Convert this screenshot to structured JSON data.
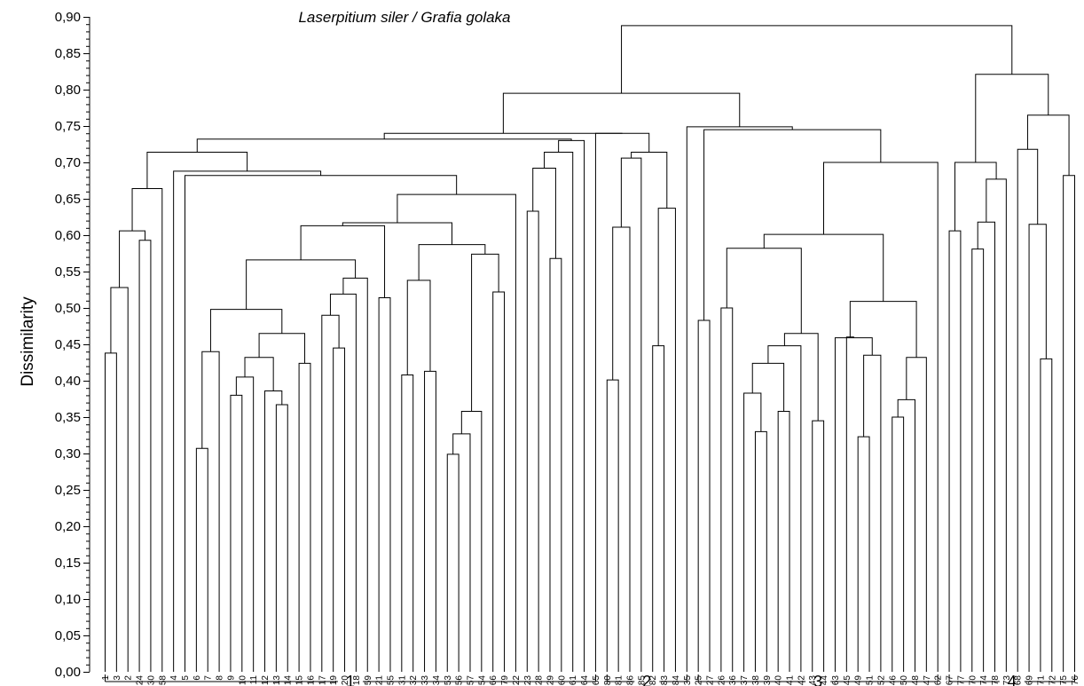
{
  "chart_data": {
    "type": "dendrogram",
    "title": "Laserpitium siler / Grafia golaka",
    "ylabel": "Dissimilarity",
    "xlabel": "",
    "ylim": [
      0,
      0.9
    ],
    "ytick_step": 0.05,
    "ytick_labels": [
      "0,00",
      "0,05",
      "0,10",
      "0,15",
      "0,20",
      "0,25",
      "0,30",
      "0,35",
      "0,40",
      "0,45",
      "0,50",
      "0,55",
      "0,60",
      "0,65",
      "0,70",
      "0,75",
      "0,80",
      "0,85",
      "0,90"
    ],
    "leaves": [
      "1",
      "3",
      "2",
      "24",
      "30",
      "58",
      "4",
      "5",
      "6",
      "7",
      "8",
      "9",
      "10",
      "11",
      "12",
      "13",
      "14",
      "15",
      "16",
      "17",
      "19",
      "20",
      "18",
      "59",
      "21",
      "55",
      "31",
      "32",
      "33",
      "34",
      "53",
      "56",
      "57",
      "54",
      "66",
      "79",
      "22",
      "23",
      "28",
      "29",
      "60",
      "61",
      "64",
      "65",
      "80",
      "81",
      "86",
      "85",
      "82",
      "83",
      "84",
      "35",
      "25",
      "27",
      "26",
      "36",
      "37",
      "38",
      "39",
      "40",
      "41",
      "42",
      "43",
      "44",
      "63",
      "45",
      "49",
      "51",
      "52",
      "46",
      "50",
      "48",
      "47",
      "62",
      "67",
      "77",
      "70",
      "74",
      "78",
      "73",
      "68",
      "69",
      "71",
      "72",
      "75",
      "76"
    ],
    "merges": [
      {
        "id": "A1",
        "children": [
          "1",
          "3"
        ],
        "height": 0.438
      },
      {
        "id": "A2",
        "children": [
          "A1",
          "2"
        ],
        "height": 0.528
      },
      {
        "id": "A3",
        "children": [
          "24",
          "30"
        ],
        "height": 0.593
      },
      {
        "id": "A4",
        "children": [
          "A2",
          "A3"
        ],
        "height": 0.606
      },
      {
        "id": "A5",
        "children": [
          "A4",
          "58"
        ],
        "height": 0.664
      },
      {
        "id": "B7",
        "children": [
          "6",
          "7"
        ],
        "height": 0.307
      },
      {
        "id": "B8",
        "children": [
          "B7",
          "8"
        ],
        "height": 0.44
      },
      {
        "id": "B9",
        "children": [
          "9",
          "10"
        ],
        "height": 0.38
      },
      {
        "id": "B10",
        "children": [
          "B9",
          "11"
        ],
        "height": 0.405
      },
      {
        "id": "B11",
        "children": [
          "13",
          "14"
        ],
        "height": 0.367
      },
      {
        "id": "B12",
        "children": [
          "12",
          "B11"
        ],
        "height": 0.386
      },
      {
        "id": "B13",
        "children": [
          "B10",
          "B12"
        ],
        "height": 0.432
      },
      {
        "id": "B14",
        "children": [
          "15",
          "16"
        ],
        "height": 0.424
      },
      {
        "id": "B15",
        "children": [
          "B13",
          "B14"
        ],
        "height": 0.465
      },
      {
        "id": "B16",
        "children": [
          "B8",
          "B15"
        ],
        "height": 0.498
      },
      {
        "id": "B17",
        "children": [
          "19",
          "20"
        ],
        "height": 0.445
      },
      {
        "id": "B18",
        "children": [
          "17",
          "B17"
        ],
        "height": 0.49
      },
      {
        "id": "B19",
        "children": [
          "B18",
          "18"
        ],
        "height": 0.519
      },
      {
        "id": "B20",
        "children": [
          "B19",
          "59"
        ],
        "height": 0.541
      },
      {
        "id": "B21",
        "children": [
          "B16",
          "B20"
        ],
        "height": 0.566
      },
      {
        "id": "B22",
        "children": [
          "21",
          "55"
        ],
        "height": 0.514
      },
      {
        "id": "B23",
        "children": [
          "B21",
          "B22"
        ],
        "height": 0.613
      },
      {
        "id": "C1",
        "children": [
          "31",
          "32"
        ],
        "height": 0.408
      },
      {
        "id": "C2",
        "children": [
          "33",
          "34"
        ],
        "height": 0.413
      },
      {
        "id": "C3",
        "children": [
          "C1",
          "C2"
        ],
        "height": 0.538
      },
      {
        "id": "C4",
        "children": [
          "53",
          "56"
        ],
        "height": 0.299
      },
      {
        "id": "C5",
        "children": [
          "C4",
          "57"
        ],
        "height": 0.327
      },
      {
        "id": "C6",
        "children": [
          "C5",
          "54"
        ],
        "height": 0.358
      },
      {
        "id": "C7",
        "children": [
          "66",
          "79"
        ],
        "height": 0.522
      },
      {
        "id": "C8",
        "children": [
          "C6",
          "C7"
        ],
        "height": 0.574
      },
      {
        "id": "C9",
        "children": [
          "C3",
          "C8"
        ],
        "height": 0.587
      },
      {
        "id": "C10",
        "children": [
          "B23",
          "C9"
        ],
        "height": 0.617
      },
      {
        "id": "C11",
        "children": [
          "C10",
          "22"
        ],
        "height": 0.656
      },
      {
        "id": "C12",
        "children": [
          "5",
          "C11"
        ],
        "height": 0.682
      },
      {
        "id": "C13",
        "children": [
          "4",
          "C12"
        ],
        "height": 0.688
      },
      {
        "id": "C14",
        "children": [
          "A5",
          "C13"
        ],
        "height": 0.714
      },
      {
        "id": "D1",
        "children": [
          "23",
          "28"
        ],
        "height": 0.633
      },
      {
        "id": "D2",
        "children": [
          "29",
          "60"
        ],
        "height": 0.568
      },
      {
        "id": "D3",
        "children": [
          "D1",
          "D2"
        ],
        "height": 0.692
      },
      {
        "id": "D4",
        "children": [
          "D3",
          "61"
        ],
        "height": 0.714
      },
      {
        "id": "D5",
        "children": [
          "D4",
          "64"
        ],
        "height": 0.73
      },
      {
        "id": "D6",
        "children": [
          "C14",
          "D5"
        ],
        "height": 0.732
      },
      {
        "id": "E1",
        "children": [
          "80",
          "81"
        ],
        "height": 0.401
      },
      {
        "id": "E2",
        "children": [
          "E1",
          "86"
        ],
        "height": 0.611
      },
      {
        "id": "E3",
        "children": [
          "E2",
          "85"
        ],
        "height": 0.706
      },
      {
        "id": "E4",
        "children": [
          "82",
          "83"
        ],
        "height": 0.448
      },
      {
        "id": "E5",
        "children": [
          "E4",
          "84"
        ],
        "height": 0.637
      },
      {
        "id": "E6",
        "children": [
          "E3",
          "E5"
        ],
        "height": 0.714
      },
      {
        "id": "E7",
        "children": [
          "65",
          "E6"
        ],
        "height": 0.74
      },
      {
        "id": "E8",
        "children": [
          "D6",
          "E7"
        ],
        "height": 0.74
      },
      {
        "id": "F1",
        "children": [
          "25",
          "27"
        ],
        "height": 0.483
      },
      {
        "id": "F2",
        "children": [
          "26",
          "36"
        ],
        "height": 0.5
      },
      {
        "id": "G1",
        "children": [
          "38",
          "39"
        ],
        "height": 0.33
      },
      {
        "id": "G2",
        "children": [
          "37",
          "G1"
        ],
        "height": 0.383
      },
      {
        "id": "G3",
        "children": [
          "40",
          "41"
        ],
        "height": 0.358
      },
      {
        "id": "G4",
        "children": [
          "G2",
          "G3"
        ],
        "height": 0.424
      },
      {
        "id": "G5",
        "children": [
          "G4",
          "42"
        ],
        "height": 0.448
      },
      {
        "id": "G6",
        "children": [
          "43",
          "44"
        ],
        "height": 0.345
      },
      {
        "id": "G7",
        "children": [
          "G5",
          "G6"
        ],
        "height": 0.465
      },
      {
        "id": "G8",
        "children": [
          "F2",
          "G7"
        ],
        "height": 0.582
      },
      {
        "id": "H1",
        "children": [
          "49",
          "51"
        ],
        "height": 0.323
      },
      {
        "id": "H2",
        "children": [
          "H1",
          "52"
        ],
        "height": 0.435
      },
      {
        "id": "H3",
        "children": [
          "63",
          "H2"
        ],
        "height": 0.459
      },
      {
        "id": "H4",
        "children": [
          "45",
          "H3"
        ],
        "height": 0.46
      },
      {
        "id": "H5",
        "children": [
          "46",
          "50"
        ],
        "height": 0.35
      },
      {
        "id": "H6",
        "children": [
          "H5",
          "48"
        ],
        "height": 0.374
      },
      {
        "id": "H7",
        "children": [
          "H6",
          "47"
        ],
        "height": 0.432
      },
      {
        "id": "H8",
        "children": [
          "H4",
          "H7"
        ],
        "height": 0.509
      },
      {
        "id": "H9",
        "children": [
          "G8",
          "H8"
        ],
        "height": 0.601
      },
      {
        "id": "H10",
        "children": [
          "H9",
          "62"
        ],
        "height": 0.7
      },
      {
        "id": "H11",
        "children": [
          "F1",
          "H10"
        ],
        "height": 0.745
      },
      {
        "id": "H12",
        "children": [
          "35",
          "H11"
        ],
        "height": 0.749
      },
      {
        "id": "H13",
        "children": [
          "E8",
          "H12"
        ],
        "height": 0.795
      },
      {
        "id": "I1",
        "children": [
          "70",
          "74"
        ],
        "height": 0.581
      },
      {
        "id": "I2",
        "children": [
          "I1",
          "78"
        ],
        "height": 0.618
      },
      {
        "id": "I3",
        "children": [
          "I2",
          "73"
        ],
        "height": 0.677
      },
      {
        "id": "I4",
        "children": [
          "67",
          "77"
        ],
        "height": 0.606
      },
      {
        "id": "I5",
        "children": [
          "I4",
          "I3"
        ],
        "height": 0.7
      },
      {
        "id": "J1",
        "children": [
          "71",
          "72"
        ],
        "height": 0.43
      },
      {
        "id": "J2",
        "children": [
          "69",
          "J1"
        ],
        "height": 0.615
      },
      {
        "id": "J3",
        "children": [
          "68",
          "J2"
        ],
        "height": 0.718
      },
      {
        "id": "J4",
        "children": [
          "75",
          "76"
        ],
        "height": 0.682
      },
      {
        "id": "J5",
        "children": [
          "J3",
          "J4"
        ],
        "height": 0.765
      },
      {
        "id": "J6",
        "children": [
          "I5",
          "J5"
        ],
        "height": 0.821
      },
      {
        "id": "ROOT",
        "children": [
          "H13",
          "J6"
        ],
        "height": 0.888
      }
    ],
    "groups": [
      {
        "label": "1",
        "first_leaf": "1",
        "last_leaf": "65"
      },
      {
        "label": "2",
        "first_leaf": "80",
        "last_leaf": "35"
      },
      {
        "label": "3",
        "first_leaf": "25",
        "last_leaf": "62"
      },
      {
        "label": "4",
        "first_leaf": "67",
        "last_leaf": "76"
      }
    ]
  }
}
